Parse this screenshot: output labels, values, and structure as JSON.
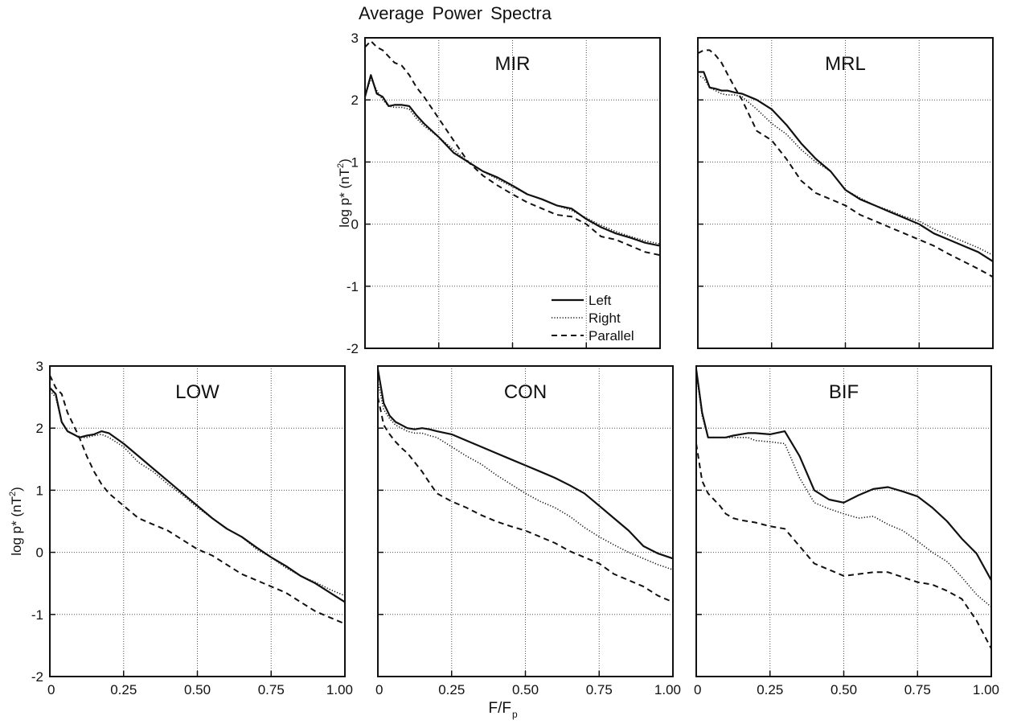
{
  "figure": {
    "title": "Average Power Spectra",
    "xlabel_main": "F/F",
    "xlabel_sub": "p",
    "ylabel_text": "log p* (nT",
    "ylabel_sup": "2",
    "ylabel_close": ")",
    "x_tick_labels": [
      "0",
      "0.25",
      "0.50",
      "0.75",
      "1.00"
    ],
    "y_tick_labels": [
      "3",
      "2",
      "1",
      "0",
      "-1",
      "-2"
    ],
    "legend": {
      "left": "Left",
      "right": "Right",
      "parallel": "Parallel"
    }
  },
  "chart_data": [
    {
      "type": "line",
      "panel": "MIR",
      "title": "MIR",
      "xlim": [
        0,
        1
      ],
      "ylim": [
        -2,
        3
      ],
      "x": [
        0,
        0.02,
        0.04,
        0.06,
        0.08,
        0.1,
        0.125,
        0.15,
        0.175,
        0.2,
        0.25,
        0.3,
        0.35,
        0.4,
        0.45,
        0.5,
        0.55,
        0.6,
        0.65,
        0.7,
        0.75,
        0.8,
        0.85,
        0.9,
        0.95,
        1.0
      ],
      "series": [
        {
          "name": "Left",
          "style": "solid",
          "values": [
            2.05,
            2.4,
            2.1,
            2.05,
            1.9,
            1.92,
            1.92,
            1.9,
            1.75,
            1.62,
            1.4,
            1.15,
            1.0,
            0.85,
            0.75,
            0.62,
            0.48,
            0.4,
            0.3,
            0.25,
            0.08,
            -0.05,
            -0.15,
            -0.22,
            -0.3,
            -0.35
          ]
        },
        {
          "name": "Right",
          "style": "dotted",
          "values": [
            2.05,
            2.35,
            2.15,
            2.0,
            1.9,
            1.88,
            1.88,
            1.85,
            1.7,
            1.58,
            1.4,
            1.2,
            1.0,
            0.85,
            0.72,
            0.6,
            0.48,
            0.4,
            0.3,
            0.22,
            0.1,
            -0.02,
            -0.12,
            -0.2,
            -0.27,
            -0.32
          ]
        },
        {
          "name": "Parallel",
          "style": "dashed",
          "values": [
            2.85,
            2.95,
            2.85,
            2.8,
            2.7,
            2.6,
            2.55,
            2.4,
            2.2,
            2.05,
            1.7,
            1.35,
            1.0,
            0.78,
            0.62,
            0.48,
            0.35,
            0.25,
            0.15,
            0.12,
            0.0,
            -0.2,
            -0.25,
            -0.35,
            -0.45,
            -0.5
          ]
        }
      ]
    },
    {
      "type": "line",
      "panel": "MRL",
      "title": "MRL",
      "xlim": [
        0,
        1
      ],
      "ylim": [
        -2,
        3
      ],
      "x": [
        0,
        0.02,
        0.04,
        0.06,
        0.08,
        0.1,
        0.125,
        0.15,
        0.175,
        0.2,
        0.25,
        0.3,
        0.35,
        0.4,
        0.45,
        0.5,
        0.55,
        0.6,
        0.65,
        0.7,
        0.75,
        0.8,
        0.85,
        0.9,
        0.95,
        1.0
      ],
      "series": [
        {
          "name": "Left",
          "style": "solid",
          "values": [
            2.45,
            2.45,
            2.2,
            2.18,
            2.15,
            2.15,
            2.12,
            2.1,
            2.05,
            2.0,
            1.85,
            1.6,
            1.3,
            1.05,
            0.85,
            0.55,
            0.4,
            0.3,
            0.2,
            0.1,
            0.0,
            -0.15,
            -0.25,
            -0.35,
            -0.45,
            -0.6
          ]
        },
        {
          "name": "Right",
          "style": "dotted",
          "values": [
            2.4,
            2.35,
            2.2,
            2.15,
            2.1,
            2.08,
            2.08,
            2.05,
            1.95,
            1.85,
            1.62,
            1.45,
            1.2,
            1.0,
            0.85,
            0.55,
            0.42,
            0.3,
            0.22,
            0.12,
            0.05,
            -0.08,
            -0.18,
            -0.28,
            -0.38,
            -0.5
          ]
        },
        {
          "name": "Parallel",
          "style": "dashed",
          "values": [
            2.75,
            2.8,
            2.8,
            2.72,
            2.6,
            2.42,
            2.2,
            2.0,
            1.75,
            1.5,
            1.35,
            1.05,
            0.7,
            0.5,
            0.4,
            0.3,
            0.15,
            0.05,
            -0.05,
            -0.15,
            -0.25,
            -0.35,
            -0.48,
            -0.6,
            -0.72,
            -0.85
          ]
        }
      ]
    },
    {
      "type": "line",
      "panel": "LOW",
      "title": "LOW",
      "xlim": [
        0,
        1
      ],
      "ylim": [
        -2,
        3
      ],
      "x": [
        0,
        0.02,
        0.04,
        0.06,
        0.08,
        0.1,
        0.125,
        0.15,
        0.175,
        0.2,
        0.25,
        0.3,
        0.35,
        0.4,
        0.45,
        0.5,
        0.55,
        0.6,
        0.65,
        0.7,
        0.75,
        0.8,
        0.85,
        0.9,
        0.95,
        1.0
      ],
      "series": [
        {
          "name": "Left",
          "style": "solid",
          "values": [
            2.65,
            2.55,
            2.1,
            1.95,
            1.9,
            1.85,
            1.88,
            1.9,
            1.95,
            1.92,
            1.75,
            1.55,
            1.35,
            1.15,
            0.95,
            0.75,
            0.55,
            0.38,
            0.25,
            0.08,
            -0.08,
            -0.22,
            -0.38,
            -0.5,
            -0.65,
            -0.8
          ]
        },
        {
          "name": "Right",
          "style": "dotted",
          "values": [
            2.6,
            2.5,
            2.1,
            1.95,
            1.9,
            1.85,
            1.85,
            1.88,
            1.9,
            1.85,
            1.7,
            1.45,
            1.3,
            1.1,
            0.92,
            0.72,
            0.55,
            0.38,
            0.25,
            0.05,
            -0.08,
            -0.25,
            -0.38,
            -0.48,
            -0.6,
            -0.7
          ]
        },
        {
          "name": "Parallel",
          "style": "dashed",
          "values": [
            2.85,
            2.65,
            2.55,
            2.25,
            2.05,
            1.85,
            1.55,
            1.3,
            1.1,
            0.95,
            0.75,
            0.55,
            0.45,
            0.35,
            0.2,
            0.05,
            -0.05,
            -0.2,
            -0.35,
            -0.45,
            -0.55,
            -0.65,
            -0.8,
            -0.95,
            -1.05,
            -1.15
          ]
        }
      ]
    },
    {
      "type": "line",
      "panel": "CON",
      "title": "CON",
      "xlim": [
        0,
        1
      ],
      "ylim": [
        -2,
        3
      ],
      "x": [
        0,
        0.02,
        0.04,
        0.06,
        0.08,
        0.1,
        0.125,
        0.15,
        0.175,
        0.2,
        0.25,
        0.3,
        0.35,
        0.4,
        0.45,
        0.5,
        0.55,
        0.6,
        0.65,
        0.7,
        0.75,
        0.8,
        0.85,
        0.9,
        0.95,
        1.0
      ],
      "series": [
        {
          "name": "Left",
          "style": "solid",
          "values": [
            2.95,
            2.4,
            2.2,
            2.1,
            2.05,
            2.0,
            1.98,
            2.0,
            1.98,
            1.95,
            1.9,
            1.8,
            1.7,
            1.6,
            1.5,
            1.4,
            1.3,
            1.2,
            1.08,
            0.95,
            0.75,
            0.55,
            0.35,
            0.1,
            -0.02,
            -0.1
          ]
        },
        {
          "name": "Right",
          "style": "dotted",
          "values": [
            2.75,
            2.3,
            2.15,
            2.05,
            2.0,
            1.95,
            1.92,
            1.92,
            1.88,
            1.85,
            1.7,
            1.55,
            1.42,
            1.25,
            1.1,
            0.95,
            0.82,
            0.72,
            0.58,
            0.4,
            0.25,
            0.12,
            0.0,
            -0.1,
            -0.2,
            -0.28
          ]
        },
        {
          "name": "Parallel",
          "style": "dashed",
          "values": [
            2.5,
            2.05,
            1.9,
            1.78,
            1.68,
            1.6,
            1.45,
            1.3,
            1.12,
            0.95,
            0.82,
            0.72,
            0.6,
            0.5,
            0.42,
            0.35,
            0.25,
            0.15,
            0.02,
            -0.08,
            -0.18,
            -0.35,
            -0.45,
            -0.55,
            -0.7,
            -0.8
          ]
        }
      ]
    },
    {
      "type": "line",
      "panel": "BIF",
      "title": "BIF",
      "xlim": [
        0,
        1
      ],
      "ylim": [
        -2,
        3
      ],
      "x": [
        0,
        0.02,
        0.04,
        0.06,
        0.08,
        0.1,
        0.125,
        0.15,
        0.175,
        0.2,
        0.25,
        0.3,
        0.35,
        0.4,
        0.45,
        0.5,
        0.55,
        0.6,
        0.65,
        0.7,
        0.75,
        0.8,
        0.85,
        0.9,
        0.95,
        1.0
      ],
      "series": [
        {
          "name": "Left",
          "style": "solid",
          "values": [
            2.95,
            2.25,
            1.85,
            1.85,
            1.85,
            1.85,
            1.88,
            1.9,
            1.92,
            1.92,
            1.9,
            1.95,
            1.55,
            1.0,
            0.85,
            0.8,
            0.92,
            1.02,
            1.05,
            0.98,
            0.9,
            0.72,
            0.5,
            0.22,
            -0.02,
            -0.45
          ]
        },
        {
          "name": "Right",
          "style": "dotted",
          "values": [
            2.9,
            2.2,
            1.85,
            1.85,
            1.85,
            1.85,
            1.85,
            1.85,
            1.85,
            1.8,
            1.78,
            1.75,
            1.2,
            0.8,
            0.7,
            0.62,
            0.55,
            0.58,
            0.45,
            0.35,
            0.18,
            0.0,
            -0.15,
            -0.4,
            -0.68,
            -0.88
          ]
        },
        {
          "name": "Parallel",
          "style": "dashed",
          "values": [
            1.75,
            1.15,
            0.95,
            0.85,
            0.75,
            0.62,
            0.55,
            0.52,
            0.5,
            0.48,
            0.42,
            0.38,
            0.1,
            -0.18,
            -0.28,
            -0.38,
            -0.35,
            -0.32,
            -0.32,
            -0.4,
            -0.48,
            -0.52,
            -0.62,
            -0.75,
            -1.1,
            -1.55
          ]
        }
      ]
    }
  ]
}
